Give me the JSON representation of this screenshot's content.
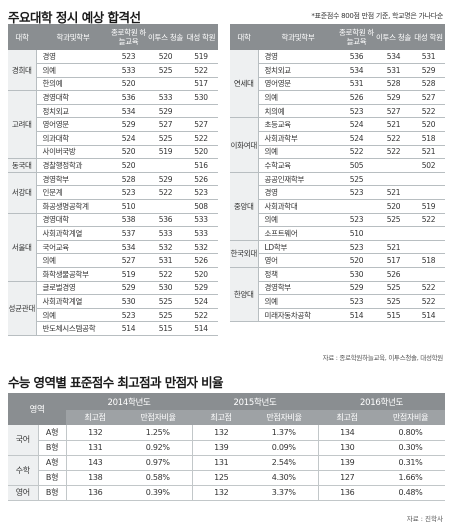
{
  "title1": "주요대학 정시 예상 합격선",
  "note1": "*표준점수 800점 만점 기준, 학교명은 가나다순",
  "headers": {
    "univ": "대학",
    "dept": "학과및학부",
    "c1": "종로학원 하늘교육",
    "c2": "이투스 청솔",
    "c3": "대성 학원"
  },
  "left": {
    "groups": [
      {
        "name": "경희대",
        "rows": [
          {
            "dept": "경영",
            "c1": "523",
            "c2": "520",
            "c3": "519"
          },
          {
            "dept": "의예",
            "c1": "533",
            "c2": "525",
            "c3": "522"
          },
          {
            "dept": "한의예",
            "c1": "520",
            "c2": "",
            "c3": "517"
          }
        ]
      },
      {
        "name": "고려대",
        "rows": [
          {
            "dept": "경영대학",
            "c1": "536",
            "c2": "533",
            "c3": "530"
          },
          {
            "dept": "정치외교",
            "c1": "534",
            "c2": "529",
            "c3": ""
          },
          {
            "dept": "영어영문",
            "c1": "529",
            "c2": "527",
            "c3": "527"
          },
          {
            "dept": "의과대학",
            "c1": "524",
            "c2": "525",
            "c3": "522"
          },
          {
            "dept": "사이버국방",
            "c1": "520",
            "c2": "519",
            "c3": "520"
          }
        ]
      },
      {
        "name": "동국대",
        "rows": [
          {
            "dept": "경찰행정학과",
            "c1": "520",
            "c2": "",
            "c3": "516"
          }
        ]
      },
      {
        "name": "서강대",
        "rows": [
          {
            "dept": "경영학부",
            "c1": "528",
            "c2": "529",
            "c3": "526"
          },
          {
            "dept": "인문계",
            "c1": "523",
            "c2": "522",
            "c3": "523"
          },
          {
            "dept": "화공생명공학계",
            "c1": "510",
            "c2": "",
            "c3": "508"
          }
        ]
      },
      {
        "name": "서울대",
        "rows": [
          {
            "dept": "경영대학",
            "c1": "538",
            "c2": "536",
            "c3": "533"
          },
          {
            "dept": "사회과학계열",
            "c1": "537",
            "c2": "533",
            "c3": "533"
          },
          {
            "dept": "국어교육",
            "c1": "534",
            "c2": "532",
            "c3": "532"
          },
          {
            "dept": "의예",
            "c1": "527",
            "c2": "531",
            "c3": "526"
          },
          {
            "dept": "화학생물공학부",
            "c1": "519",
            "c2": "522",
            "c3": "520"
          }
        ]
      },
      {
        "name": "성균관대",
        "rows": [
          {
            "dept": "글로벌경영",
            "c1": "529",
            "c2": "530",
            "c3": "529"
          },
          {
            "dept": "사회과학계열",
            "c1": "530",
            "c2": "525",
            "c3": "524"
          },
          {
            "dept": "의예",
            "c1": "523",
            "c2": "525",
            "c3": "522"
          },
          {
            "dept": "반도체시스템공학",
            "c1": "514",
            "c2": "515",
            "c3": "514"
          }
        ]
      }
    ]
  },
  "right": {
    "groups": [
      {
        "name": "연세대",
        "rows": [
          {
            "dept": "경영",
            "c1": "536",
            "c2": "534",
            "c3": "531"
          },
          {
            "dept": "정치외교",
            "c1": "534",
            "c2": "531",
            "c3": "529"
          },
          {
            "dept": "영어영문",
            "c1": "531",
            "c2": "528",
            "c3": "528"
          },
          {
            "dept": "의예",
            "c1": "526",
            "c2": "529",
            "c3": "527"
          },
          {
            "dept": "치의예",
            "c1": "523",
            "c2": "527",
            "c3": "522"
          }
        ]
      },
      {
        "name": "이화여대",
        "rows": [
          {
            "dept": "초등교육",
            "c1": "524",
            "c2": "521",
            "c3": "520"
          },
          {
            "dept": "사회과학부",
            "c1": "524",
            "c2": "522",
            "c3": "518"
          },
          {
            "dept": "의예",
            "c1": "522",
            "c2": "522",
            "c3": "521"
          },
          {
            "dept": "수학교육",
            "c1": "505",
            "c2": "",
            "c3": "502"
          }
        ]
      },
      {
        "name": "중앙대",
        "rows": [
          {
            "dept": "공공인재학부",
            "c1": "525",
            "c2": "",
            "c3": ""
          },
          {
            "dept": "경영",
            "c1": "523",
            "c2": "521",
            "c3": ""
          },
          {
            "dept": "사회과학대",
            "c1": "",
            "c2": "520",
            "c3": "519"
          },
          {
            "dept": "의예",
            "c1": "523",
            "c2": "525",
            "c3": "522"
          },
          {
            "dept": "소프트웨어",
            "c1": "510",
            "c2": "",
            "c3": ""
          }
        ]
      },
      {
        "name": "한국외대",
        "rows": [
          {
            "dept": "LD학부",
            "c1": "523",
            "c2": "521",
            "c3": ""
          },
          {
            "dept": "영어",
            "c1": "520",
            "c2": "517",
            "c3": "518"
          }
        ]
      },
      {
        "name": "한양대",
        "rows": [
          {
            "dept": "정책",
            "c1": "530",
            "c2": "526",
            "c3": ""
          },
          {
            "dept": "경영학부",
            "c1": "529",
            "c2": "525",
            "c3": "522"
          },
          {
            "dept": "의예",
            "c1": "523",
            "c2": "525",
            "c3": "522"
          },
          {
            "dept": "미래자동차공학",
            "c1": "514",
            "c2": "515",
            "c3": "514"
          }
        ]
      }
    ]
  },
  "note2": "자료 : 종로학원하늘교육, 이투스청솔, 대성학원",
  "title2": "수능 영역별 표준점수 최고점과 만점자 비율",
  "table2": {
    "area_header": "영역",
    "years": [
      "2014학년도",
      "2015학년도",
      "2016학년도"
    ],
    "sub_headers": [
      "최고점",
      "만점자비율"
    ],
    "rows": [
      {
        "area": "국어",
        "type": "A형",
        "vals": [
          "132",
          "1.25%",
          "132",
          "1.37%",
          "134",
          "0.80%"
        ]
      },
      {
        "area": "",
        "type": "B형",
        "vals": [
          "131",
          "0.92%",
          "139",
          "0.09%",
          "130",
          "0.30%"
        ]
      },
      {
        "area": "수학",
        "type": "A형",
        "vals": [
          "143",
          "0.97%",
          "131",
          "2.54%",
          "139",
          "0.31%"
        ]
      },
      {
        "area": "",
        "type": "B형",
        "vals": [
          "138",
          "0.58%",
          "125",
          "4.30%",
          "127",
          "1.66%"
        ]
      },
      {
        "area": "영어",
        "type": "B형",
        "vals": [
          "136",
          "0.39%",
          "132",
          "3.37%",
          "136",
          "0.48%"
        ]
      }
    ]
  },
  "note3": "자료 : 진학사"
}
